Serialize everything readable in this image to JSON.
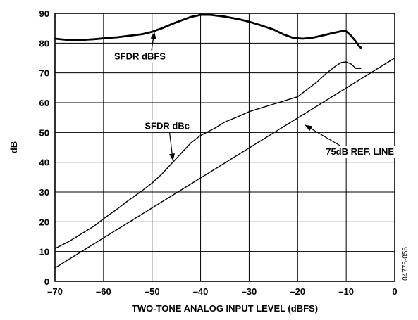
{
  "chart_data": {
    "type": "line",
    "title": "",
    "xlabel": "TWO-TONE ANALOG INPUT LEVEL (dBFS)",
    "ylabel": "dB",
    "xlim": [
      -70,
      0
    ],
    "ylim": [
      0,
      90
    ],
    "grid": true,
    "x_ticks": [
      -70,
      -60,
      -50,
      -40,
      -30,
      -20,
      -10,
      0
    ],
    "x_tick_labels": [
      "–70",
      "–60",
      "–50",
      "–40",
      "–30",
      "–20",
      "–10",
      "0"
    ],
    "y_ticks": [
      0,
      10,
      20,
      30,
      40,
      50,
      60,
      70,
      80,
      90
    ],
    "y_tick_labels": [
      "0",
      "10",
      "20",
      "30",
      "40",
      "50",
      "60",
      "70",
      "80",
      "90"
    ],
    "series": [
      {
        "name": "SFDR dBFS",
        "x": [
          -70,
          -67,
          -65,
          -62,
          -60,
          -57,
          -55,
          -52,
          -50,
          -48,
          -45,
          -42,
          -40,
          -38,
          -35,
          -32,
          -30,
          -28,
          -25,
          -23,
          -21,
          -19,
          -17,
          -15,
          -13,
          -11,
          -10,
          -9,
          -8,
          -7.5,
          -7
        ],
        "y": [
          81.5,
          81.0,
          81.0,
          81.3,
          81.6,
          82.0,
          82.4,
          83.0,
          83.8,
          85.0,
          87.0,
          88.8,
          89.5,
          89.5,
          88.9,
          88.0,
          87.2,
          86.2,
          84.6,
          83.0,
          81.8,
          81.5,
          81.8,
          82.5,
          83.3,
          84.0,
          84.0,
          82.5,
          80.5,
          79.2,
          78.5
        ]
      },
      {
        "name": "SFDR dBc",
        "x": [
          -70,
          -67,
          -65,
          -62,
          -60,
          -57,
          -55,
          -52,
          -50,
          -48,
          -46,
          -44,
          -42,
          -40,
          -37,
          -35,
          -32,
          -30,
          -27,
          -25,
          -22,
          -20,
          -18,
          -16,
          -14,
          -12,
          -11,
          -10,
          -9,
          -8,
          -7
        ],
        "y": [
          11,
          13.5,
          15.5,
          18.5,
          21,
          24.5,
          27,
          30.5,
          33,
          36,
          39.5,
          43,
          46.5,
          49,
          51.5,
          53.5,
          55.5,
          57,
          58.5,
          59.5,
          61,
          62,
          64.5,
          67,
          70,
          72.5,
          73.5,
          73.7,
          73.0,
          71.5,
          71.5
        ]
      },
      {
        "name": "75dB REF. LINE",
        "x": [
          -70,
          0
        ],
        "y": [
          4.5,
          75
        ]
      }
    ],
    "annotations": [
      {
        "text": "SFDR dBFS",
        "x": -52.5,
        "y": 74.5,
        "arrow_to": [
          -49.5,
          83.8
        ]
      },
      {
        "text": "SFDR dBc",
        "x": -51.5,
        "y": 51.2,
        "arrow_to": [
          -45.7,
          40.5
        ]
      },
      {
        "text": "75dB REF. LINE",
        "x": -14.2,
        "y": 42.5,
        "arrow_to": [
          -18.5,
          52.5
        ]
      }
    ],
    "figure_id": "04775-056"
  }
}
